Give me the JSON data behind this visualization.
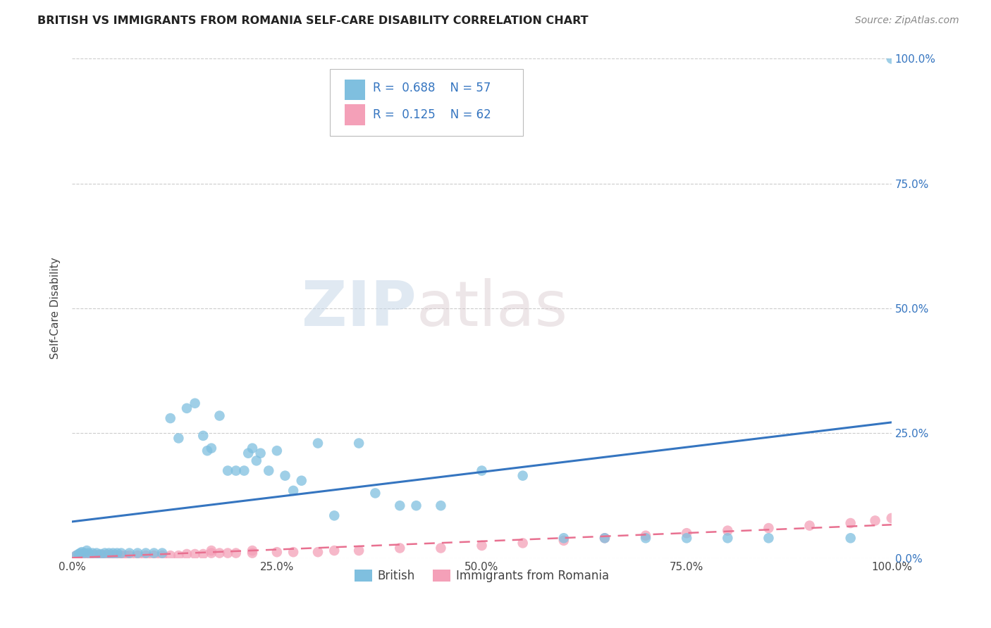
{
  "title": "BRITISH VS IMMIGRANTS FROM ROMANIA SELF-CARE DISABILITY CORRELATION CHART",
  "source": "Source: ZipAtlas.com",
  "ylabel": "Self-Care Disability",
  "british_R": 0.688,
  "british_N": 57,
  "romania_R": 0.125,
  "romania_N": 62,
  "british_color": "#7fbfdf",
  "romania_color": "#f4a0b8",
  "british_line_color": "#3575c0",
  "romania_line_color": "#e87090",
  "british_scatter_x": [
    0.005,
    0.008,
    0.01,
    0.012,
    0.015,
    0.018,
    0.02,
    0.025,
    0.03,
    0.035,
    0.04,
    0.045,
    0.05,
    0.055,
    0.06,
    0.07,
    0.08,
    0.09,
    0.1,
    0.11,
    0.12,
    0.13,
    0.14,
    0.15,
    0.16,
    0.165,
    0.17,
    0.18,
    0.19,
    0.2,
    0.21,
    0.215,
    0.22,
    0.225,
    0.23,
    0.24,
    0.25,
    0.26,
    0.27,
    0.28,
    0.3,
    0.32,
    0.35,
    0.37,
    0.4,
    0.42,
    0.45,
    0.5,
    0.55,
    0.6,
    0.65,
    0.7,
    0.75,
    0.8,
    0.85,
    0.95,
    1.0
  ],
  "british_scatter_y": [
    0.005,
    0.008,
    0.01,
    0.012,
    0.01,
    0.015,
    0.01,
    0.01,
    0.01,
    0.008,
    0.01,
    0.01,
    0.01,
    0.01,
    0.01,
    0.01,
    0.01,
    0.01,
    0.01,
    0.01,
    0.28,
    0.24,
    0.3,
    0.31,
    0.245,
    0.215,
    0.22,
    0.285,
    0.175,
    0.175,
    0.175,
    0.21,
    0.22,
    0.195,
    0.21,
    0.175,
    0.215,
    0.165,
    0.135,
    0.155,
    0.23,
    0.085,
    0.23,
    0.13,
    0.105,
    0.105,
    0.105,
    0.175,
    0.165,
    0.04,
    0.04,
    0.04,
    0.04,
    0.04,
    0.04,
    0.04,
    1.0
  ],
  "romania_scatter_x": [
    0.005,
    0.007,
    0.009,
    0.011,
    0.013,
    0.015,
    0.017,
    0.019,
    0.021,
    0.023,
    0.025,
    0.027,
    0.029,
    0.031,
    0.033,
    0.035,
    0.037,
    0.039,
    0.041,
    0.043,
    0.045,
    0.048,
    0.051,
    0.055,
    0.06,
    0.065,
    0.07,
    0.08,
    0.09,
    0.1,
    0.11,
    0.12,
    0.13,
    0.14,
    0.15,
    0.16,
    0.17,
    0.18,
    0.19,
    0.2,
    0.22,
    0.25,
    0.27,
    0.3,
    0.32,
    0.35,
    0.4,
    0.45,
    0.5,
    0.55,
    0.6,
    0.65,
    0.7,
    0.75,
    0.8,
    0.85,
    0.9,
    0.95,
    0.98,
    1.0,
    0.17,
    0.22
  ],
  "romania_scatter_y": [
    0.005,
    0.006,
    0.005,
    0.007,
    0.006,
    0.005,
    0.006,
    0.005,
    0.006,
    0.005,
    0.006,
    0.005,
    0.006,
    0.005,
    0.006,
    0.005,
    0.006,
    0.005,
    0.006,
    0.005,
    0.006,
    0.005,
    0.006,
    0.005,
    0.005,
    0.005,
    0.005,
    0.005,
    0.005,
    0.005,
    0.005,
    0.005,
    0.005,
    0.008,
    0.008,
    0.008,
    0.01,
    0.01,
    0.01,
    0.01,
    0.01,
    0.012,
    0.012,
    0.012,
    0.015,
    0.015,
    0.02,
    0.02,
    0.025,
    0.03,
    0.035,
    0.04,
    0.045,
    0.05,
    0.055,
    0.06,
    0.065,
    0.07,
    0.075,
    0.08,
    0.015,
    0.015
  ],
  "watermark_zip": "ZIP",
  "watermark_atlas": "atlas",
  "xlim": [
    0.0,
    1.0
  ],
  "ylim": [
    0.0,
    1.0
  ],
  "background_color": "#ffffff",
  "grid_color": "#cccccc"
}
